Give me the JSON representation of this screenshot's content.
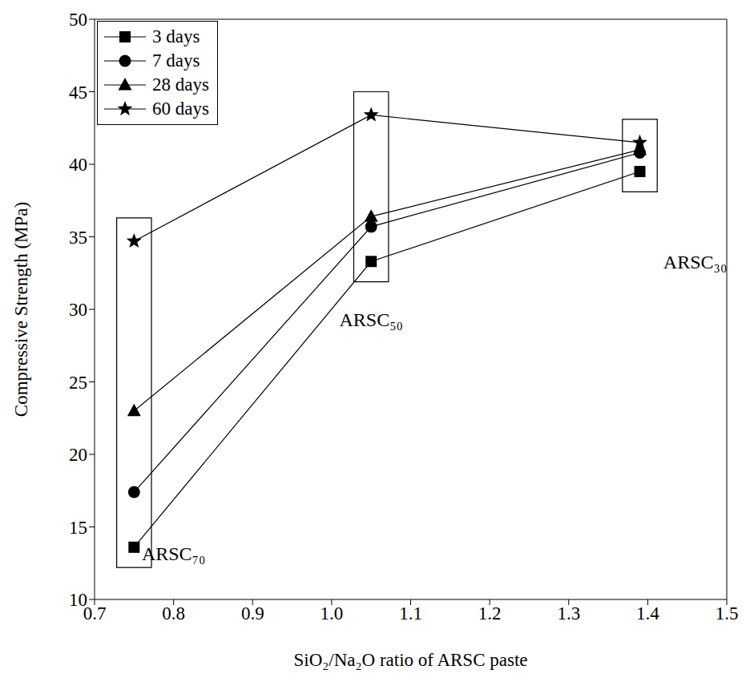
{
  "chart_data": {
    "type": "line",
    "x_label": "SiO₂/Na₂O ratio of ARSC paste",
    "y_label": "Compressive Strength (MPa)",
    "x": [
      0.75,
      1.05,
      1.39
    ],
    "series": [
      {
        "name": "3 days",
        "color": "#000000",
        "marker": "square",
        "values": [
          13.6,
          33.3,
          39.5
        ]
      },
      {
        "name": "7 days",
        "color": "#000000",
        "marker": "circle",
        "values": [
          17.4,
          35.7,
          40.8
        ]
      },
      {
        "name": "28 days",
        "color": "#000000",
        "marker": "triangle",
        "values": [
          23.0,
          36.4,
          41.0
        ]
      },
      {
        "name": "60 days",
        "color": "#000000",
        "marker": "star",
        "values": [
          34.7,
          43.4,
          41.5
        ]
      }
    ],
    "xlim": [
      0.7,
      1.5
    ],
    "xticks": [
      0.7,
      0.8,
      0.9,
      {
        "value": 1.0,
        "label": "1.0"
      },
      1.1,
      1.2,
      1.3,
      1.4,
      1.5
    ],
    "ylim": [
      10,
      50
    ],
    "yticks": [
      10,
      15,
      20,
      25,
      30,
      35,
      40,
      45,
      50
    ],
    "legend": "top-left",
    "grid": false,
    "annotations": [
      {
        "text": "ARSC₇₀",
        "x": 0.8,
        "y": 13.2
      },
      {
        "text": "ARSC₅₀",
        "x": 1.05,
        "y": 29.3
      },
      {
        "text": "ARSC₃₀",
        "x": 1.46,
        "y": 33.3
      }
    ]
  }
}
